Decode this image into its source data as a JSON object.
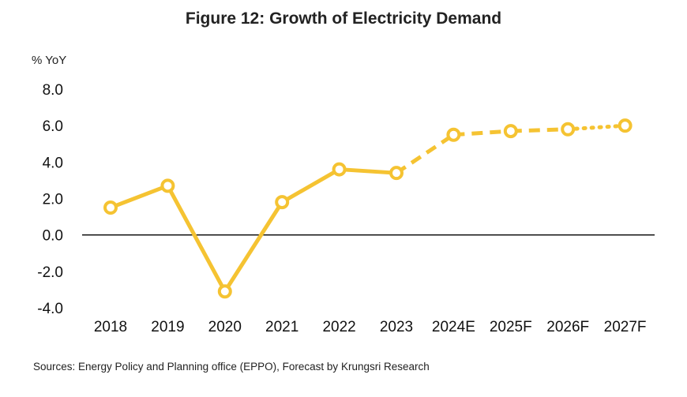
{
  "title": "Figure 12: Growth of Electricity Demand",
  "unit_label": "% YoY",
  "source": "Sources: Energy Policy and Planning office (EPPO), Forecast by Krungsri Research",
  "colors": {
    "series": "#F5C332",
    "axis": "#000000",
    "marker_fill": "#ffffff"
  },
  "chart_data": {
    "type": "line",
    "title": "Figure 12: Growth of Electricity Demand",
    "ylabel": "% YoY",
    "xlabel": "",
    "categories": [
      "2018",
      "2019",
      "2020",
      "2021",
      "2022",
      "2023",
      "2024E",
      "2025F",
      "2026F",
      "2027F"
    ],
    "values": [
      1.5,
      2.7,
      -3.1,
      1.8,
      3.6,
      3.4,
      5.5,
      5.7,
      5.8,
      6.0
    ],
    "ylim": [
      -4.0,
      8.0
    ],
    "yticks": [
      "8.0",
      "6.0",
      "4.0",
      "2.0",
      "0.0",
      "-2.0",
      "-4.0"
    ],
    "grid": false,
    "line_styles": [
      "solid",
      "solid",
      "solid",
      "solid",
      "solid",
      "dashed",
      "dashed",
      "dashed",
      "dotted"
    ]
  }
}
